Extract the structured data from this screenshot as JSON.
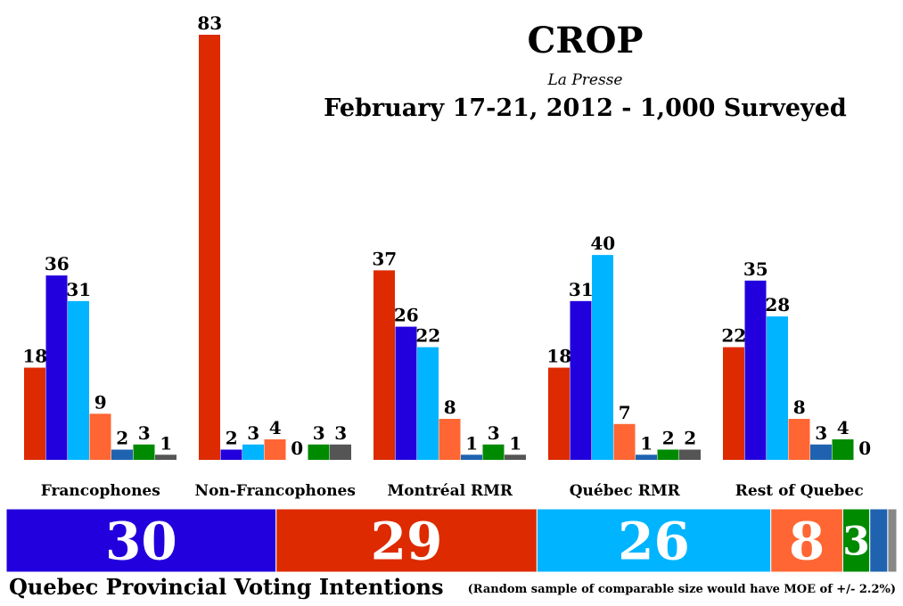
{
  "header": {
    "title": "CROP",
    "subtitle": "La Presse",
    "dates": "February 17-21, 2012 - 1,000 Surveyed"
  },
  "footer": {
    "left": "Quebec Provincial Voting Intentions",
    "right": "(Random sample of comparable size would have MOE of +/- 2.2%)"
  },
  "chart_data": [
    {
      "type": "bar",
      "categories": [
        "Francophones",
        "Non-Francophones",
        "Montréal RMR",
        "Québec RMR",
        "Rest of Quebec"
      ],
      "series": [
        {
          "color": "#dd2a00",
          "values": [
            18,
            83,
            37,
            18,
            22
          ]
        },
        {
          "color": "#2200dd",
          "values": [
            36,
            2,
            26,
            31,
            35
          ]
        },
        {
          "color": "#00b4ff",
          "values": [
            31,
            3,
            22,
            40,
            28
          ]
        },
        {
          "color": "#ff6633",
          "values": [
            9,
            4,
            8,
            7,
            8
          ]
        },
        {
          "color": "#1f63b0",
          "values": [
            2,
            0,
            1,
            1,
            3
          ]
        },
        {
          "color": "#008a00",
          "values": [
            3,
            3,
            3,
            2,
            4
          ]
        },
        {
          "color": "#555555",
          "values": [
            1,
            3,
            1,
            2,
            0
          ]
        }
      ],
      "ylim": [
        0,
        85
      ]
    },
    {
      "type": "bar",
      "orientation": "stacked-horizontal",
      "segments": [
        {
          "value": 30,
          "label": "30",
          "color": "#2200dd"
        },
        {
          "value": 29,
          "label": "29",
          "color": "#dd2a00"
        },
        {
          "value": 26,
          "label": "26",
          "color": "#00b4ff"
        },
        {
          "value": 8,
          "label": "8",
          "color": "#ff6633"
        },
        {
          "value": 3,
          "label": "3",
          "color": "#008a00"
        },
        {
          "value": 2,
          "label": "",
          "color": "#1f63b0"
        },
        {
          "value": 1,
          "label": "",
          "color": "#888888"
        }
      ]
    }
  ]
}
